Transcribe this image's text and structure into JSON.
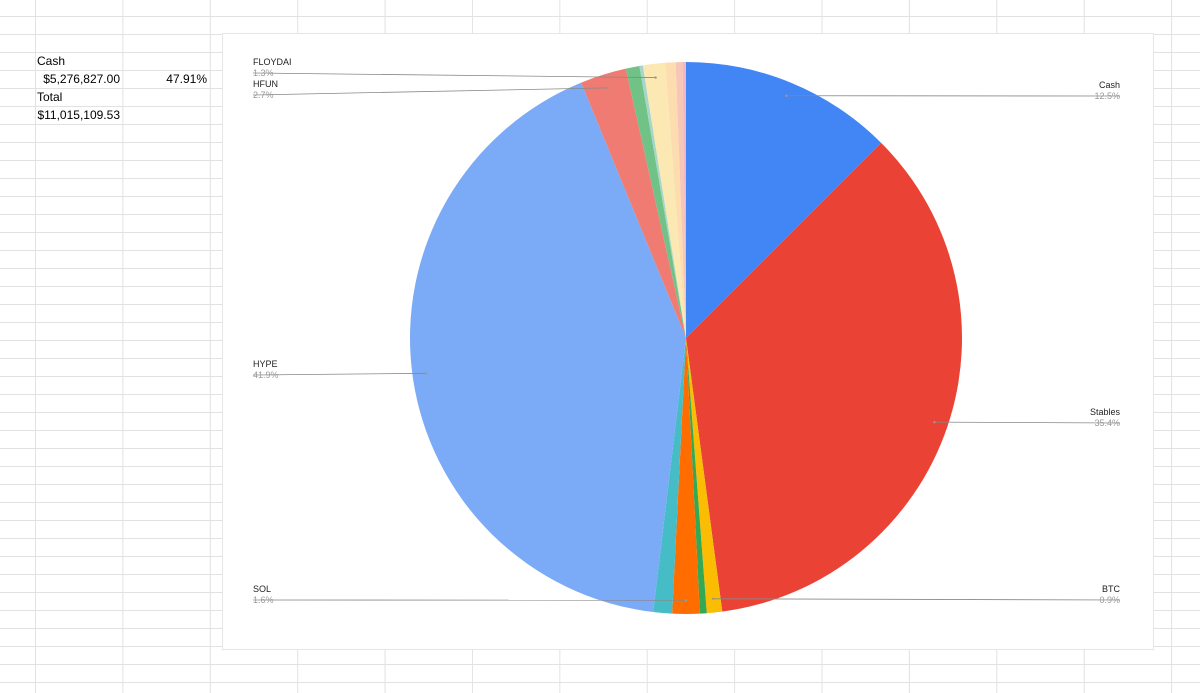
{
  "sheet": {
    "cells": {
      "label_cash": "Cash",
      "cash_amount": "$5,276,827.00",
      "cash_share": "47.91%",
      "label_total": "Total",
      "total_amount": "$11,015,109.53"
    }
  },
  "chart_data": {
    "type": "pie",
    "categories": [
      "Cash",
      "Stables",
      "BTC",
      null,
      "SOL",
      null,
      "HYPE",
      "HFUN",
      null,
      null,
      "FLOYDAI",
      null,
      null,
      null
    ],
    "values": [
      12.5,
      35.4,
      0.9,
      0.4,
      1.6,
      1.1,
      41.9,
      2.7,
      0.8,
      0.2,
      1.3,
      0.6,
      0.4,
      0.2
    ],
    "value_labels": [
      "12.5%",
      "35.4%",
      "0.9%",
      null,
      "1.6%",
      null,
      "41.9%",
      "2.7%",
      null,
      null,
      "1.3%",
      null,
      null,
      null
    ],
    "colors": [
      "#4285f4",
      "#ea4335",
      "#fbbc04",
      "#34a853",
      "#ff6d01",
      "#46bdc6",
      "#7baaf7",
      "#f07b72",
      "#71c287",
      "#a5d6c8",
      "#fce8b2",
      "#fddcb0",
      "#f6c7b6",
      "#f4b6c2"
    ]
  }
}
